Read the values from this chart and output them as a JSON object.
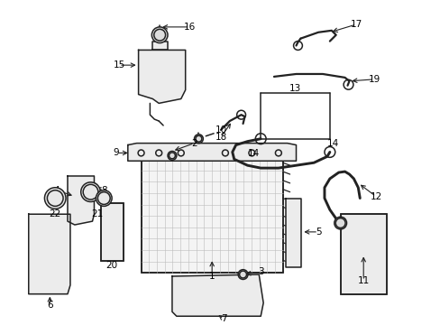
{
  "bg_color": "#ffffff",
  "line_color": "#222222",
  "text_color": "#000000",
  "lw": 1.1,
  "fontsize": 7.5
}
